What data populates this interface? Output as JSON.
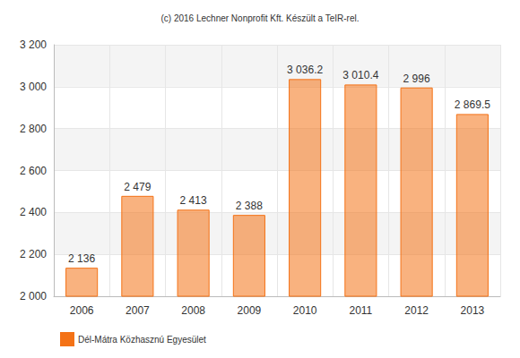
{
  "chart_data": {
    "type": "bar",
    "title": "(c) 2016 Lechner Nonprofit Kft. Készült a TeIR-rel.",
    "categories": [
      "2006",
      "2007",
      "2008",
      "2009",
      "2010",
      "2011",
      "2012",
      "2013"
    ],
    "series": [
      {
        "name": "Dél-Mátra Közhasznú Egyesület",
        "color": "#f47216",
        "values": [
          2136,
          2479,
          2413,
          2388,
          3036.2,
          3010.4,
          2996,
          2869.5
        ],
        "value_labels": [
          "2 136",
          "2 479",
          "2 413",
          "2 388",
          "3 036.2",
          "3 010.4",
          "2 996",
          "2 869.5"
        ]
      }
    ],
    "ylim": [
      2000,
      3200
    ],
    "yticks": [
      {
        "value": 2000,
        "label": "2 000"
      },
      {
        "value": 2200,
        "label": "2 200"
      },
      {
        "value": 2400,
        "label": "2 400"
      },
      {
        "value": 2600,
        "label": "2 600"
      },
      {
        "value": 2800,
        "label": "2 800"
      },
      {
        "value": 3000,
        "label": "3 000"
      },
      {
        "value": 3200,
        "label": "3 200"
      }
    ],
    "grid": true,
    "data_labels": true,
    "legend": "bottom-left"
  }
}
